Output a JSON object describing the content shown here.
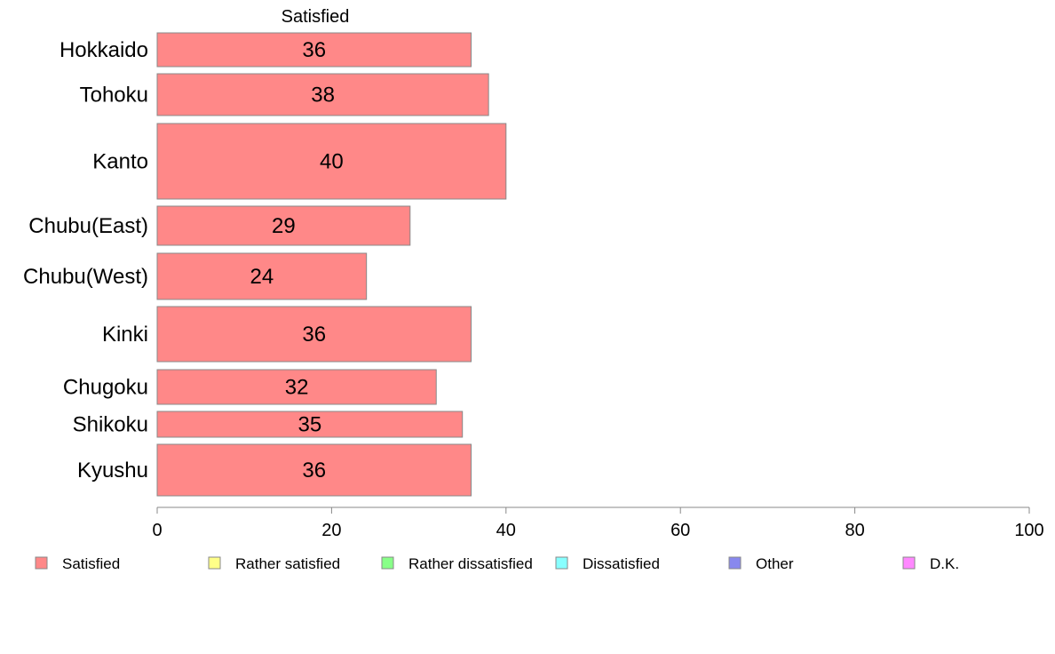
{
  "chart_data": {
    "type": "bar",
    "orientation": "horizontal",
    "stacked": true,
    "series_header": "Satisfied",
    "categories": [
      "Hokkaido",
      "Tohoku",
      "Kanto",
      "Chubu(East)",
      "Chubu(West)",
      "Kinki",
      "Chugoku",
      "Shikoku",
      "Kyushu"
    ],
    "series": [
      {
        "name": "Satisfied",
        "values": [
          36,
          38,
          40,
          29,
          24,
          36,
          32,
          35,
          36
        ],
        "color": "#ff8888"
      }
    ],
    "xlim": [
      0,
      100
    ],
    "xticks": [
      0,
      20,
      40,
      60,
      80,
      100
    ],
    "grid": false,
    "legend_position": "bottom",
    "legend": [
      {
        "label": "Satisfied",
        "color": "#ff8888"
      },
      {
        "label": "Rather satisfied",
        "color": "#ffff88"
      },
      {
        "label": "Rather dissatisfied",
        "color": "#88ff88"
      },
      {
        "label": "Dissatisfied",
        "color": "#88ffff"
      },
      {
        "label": "Other",
        "color": "#8888ee"
      },
      {
        "label": "D.K.",
        "color": "#ff88ff"
      }
    ],
    "bar_edge_color": "#888888",
    "axis_color": "#888888"
  }
}
